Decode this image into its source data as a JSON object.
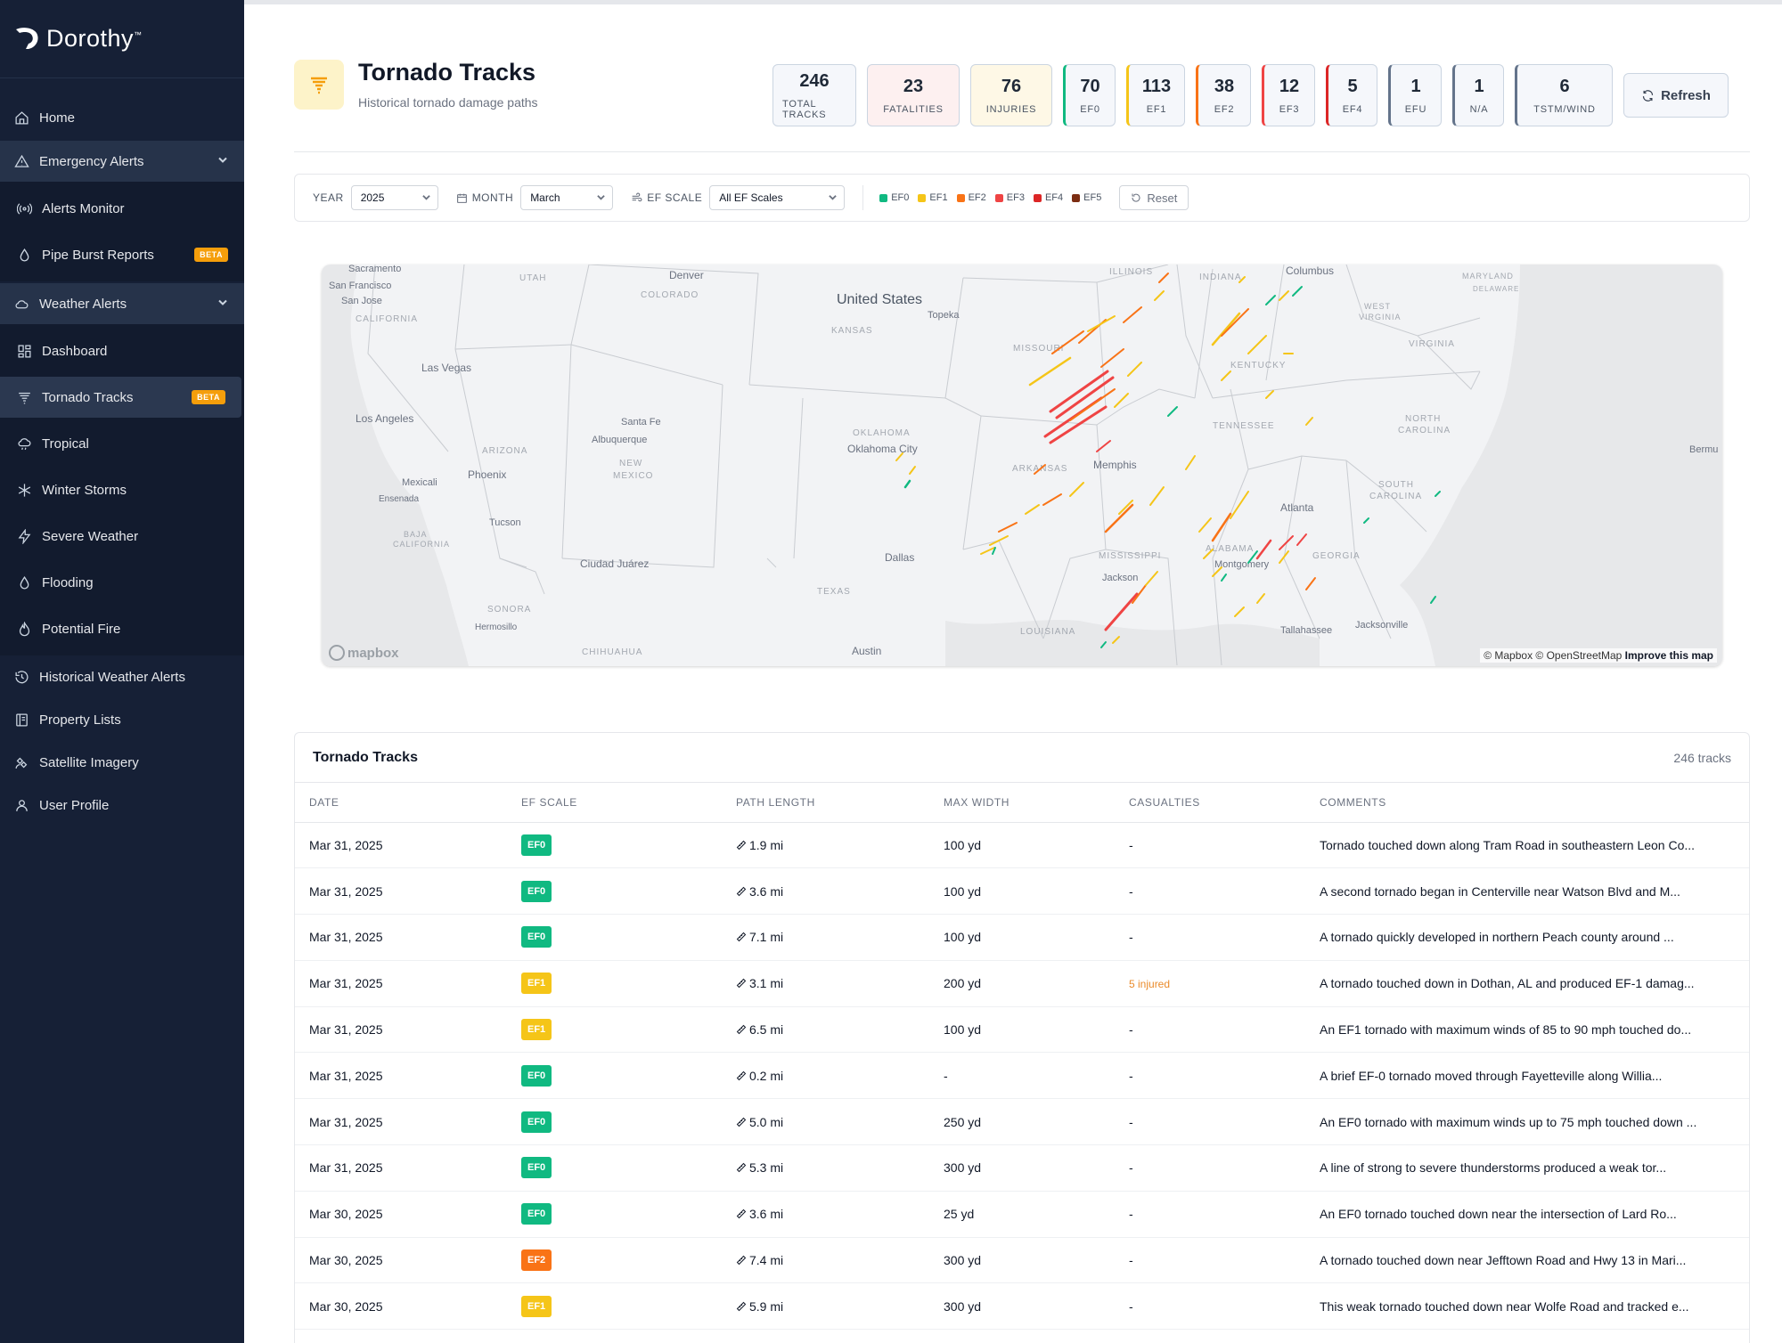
{
  "brand": {
    "name": "Dorothy",
    "tm": "™"
  },
  "sidebar": {
    "home": "Home",
    "emergency_alerts": "Emergency Alerts",
    "alerts_monitor": "Alerts Monitor",
    "pipe_burst": "Pipe Burst Reports",
    "weather_alerts": "Weather Alerts",
    "dashboard": "Dashboard",
    "tornado_tracks": "Tornado Tracks",
    "tropical": "Tropical",
    "winter_storms": "Winter Storms",
    "severe_weather": "Severe Weather",
    "flooding": "Flooding",
    "potential_fire": "Potential Fire",
    "historical": "Historical Weather Alerts",
    "property_lists": "Property Lists",
    "satellite": "Satellite Imagery",
    "user_profile": "User Profile",
    "beta": "BETA"
  },
  "header": {
    "title": "Tornado Tracks",
    "subtitle": "Historical tornado damage paths"
  },
  "stats": [
    {
      "value": "246",
      "label": "TOTAL TRACKS",
      "bg": "#f5f7fb",
      "accent": ""
    },
    {
      "value": "23",
      "label": "FATALITIES",
      "bg": "#fdf0f0",
      "accent": ""
    },
    {
      "value": "76",
      "label": "INJURIES",
      "bg": "#fef8e6",
      "accent": ""
    },
    {
      "value": "70",
      "label": "EF0",
      "bg": "#f5f7fb",
      "accent": "#10b981"
    },
    {
      "value": "113",
      "label": "EF1",
      "bg": "#f5f7fb",
      "accent": "#f5c518"
    },
    {
      "value": "38",
      "label": "EF2",
      "bg": "#f5f7fb",
      "accent": "#f97316"
    },
    {
      "value": "12",
      "label": "EF3",
      "bg": "#f5f7fb",
      "accent": "#ef4444"
    },
    {
      "value": "5",
      "label": "EF4",
      "bg": "#f5f7fb",
      "accent": "#dc2626"
    },
    {
      "value": "1",
      "label": "EFU",
      "bg": "#f5f7fb",
      "accent": "#64748b"
    },
    {
      "value": "1",
      "label": "N/A",
      "bg": "#f5f7fb",
      "accent": "#64748b"
    },
    {
      "value": "6",
      "label": "TSTM/WIND",
      "bg": "#f5f7fb",
      "accent": "#64748b"
    }
  ],
  "refresh_label": "Refresh",
  "filters": {
    "year_label": "YEAR",
    "year_value": "2025",
    "month_label": "MONTH",
    "month_value": "March",
    "ef_label": "EF SCALE",
    "ef_value": "All EF Scales",
    "reset_label": "Reset",
    "legend": [
      {
        "label": "EF0",
        "color": "#10b981"
      },
      {
        "label": "EF1",
        "color": "#f5c518"
      },
      {
        "label": "EF2",
        "color": "#f97316"
      },
      {
        "label": "EF3",
        "color": "#ef4444"
      },
      {
        "label": "EF4",
        "color": "#dc2626"
      },
      {
        "label": "EF5",
        "color": "#7c2d12"
      }
    ]
  },
  "map": {
    "attribution": "© Mapbox © OpenStreetMap",
    "improve": "Improve this map",
    "logo": "mapbox",
    "labels": [
      {
        "text": "Sacramento",
        "cls": "city"
      },
      {
        "text": "San Francisco",
        "cls": "city"
      },
      {
        "text": "San Jose",
        "cls": "city"
      },
      {
        "text": "CALIFORNIA",
        "cls": "state"
      },
      {
        "text": "Las Vegas",
        "cls": "city"
      },
      {
        "text": "Los Angeles",
        "cls": "city"
      },
      {
        "text": "UTAH",
        "cls": "state"
      },
      {
        "text": "Denver",
        "cls": "city"
      },
      {
        "text": "COLORADO",
        "cls": "state"
      },
      {
        "text": "United States",
        "cls": "country"
      },
      {
        "text": "KANSAS",
        "cls": "state"
      },
      {
        "text": "Topeka",
        "cls": "city"
      },
      {
        "text": "ARIZONA",
        "cls": "state"
      },
      {
        "text": "Phoenix",
        "cls": "city"
      },
      {
        "text": "Mexicali",
        "cls": "city"
      },
      {
        "text": "Ensenada",
        "cls": "city"
      },
      {
        "text": "Tucson",
        "cls": "city"
      },
      {
        "text": "BAJA",
        "cls": "state"
      },
      {
        "text": "CALIFORNIA",
        "cls": "state"
      },
      {
        "text": "Santa Fe",
        "cls": "city"
      },
      {
        "text": "Albuquerque",
        "cls": "city"
      },
      {
        "text": "NEW",
        "cls": "state"
      },
      {
        "text": "MEXICO",
        "cls": "state"
      },
      {
        "text": "Ciudad Juárez",
        "cls": "city"
      },
      {
        "text": "SONORA",
        "cls": "state"
      },
      {
        "text": "Hermosillo",
        "cls": "city"
      },
      {
        "text": "CHIHUAHUA",
        "cls": "state"
      },
      {
        "text": "OKLAHOMA",
        "cls": "state"
      },
      {
        "text": "Oklahoma City",
        "cls": "city"
      },
      {
        "text": "Dallas",
        "cls": "city"
      },
      {
        "text": "TEXAS",
        "cls": "state"
      },
      {
        "text": "Austin",
        "cls": "city"
      },
      {
        "text": "MISSOURI",
        "cls": "state"
      },
      {
        "text": "ARKANSAS",
        "cls": "state"
      },
      {
        "text": "Memphis",
        "cls": "city"
      },
      {
        "text": "MISSISSIPPI",
        "cls": "state"
      },
      {
        "text": "Jackson",
        "cls": "city"
      },
      {
        "text": "LOUISIANA",
        "cls": "state"
      },
      {
        "text": "ILLINOIS",
        "cls": "state"
      },
      {
        "text": "INDIANA",
        "cls": "state"
      },
      {
        "text": "Columbus",
        "cls": "city"
      },
      {
        "text": "KENTUCKY",
        "cls": "state"
      },
      {
        "text": "TENNESSEE",
        "cls": "state"
      },
      {
        "text": "ALABAMA",
        "cls": "state"
      },
      {
        "text": "Montgomery",
        "cls": "city"
      },
      {
        "text": "Atlanta",
        "cls": "city"
      },
      {
        "text": "GEORGIA",
        "cls": "state"
      },
      {
        "text": "Tallahassee",
        "cls": "city"
      },
      {
        "text": "Jacksonville",
        "cls": "city"
      },
      {
        "text": "SOUTH",
        "cls": "state"
      },
      {
        "text": "CAROLINA",
        "cls": "state"
      },
      {
        "text": "NORTH",
        "cls": "state"
      },
      {
        "text": "CAROLINA",
        "cls": "state"
      },
      {
        "text": "VIRGINIA",
        "cls": "state"
      },
      {
        "text": "WEST",
        "cls": "state"
      },
      {
        "text": "VIRGINIA",
        "cls": "state"
      },
      {
        "text": "MARYLAND",
        "cls": "state"
      },
      {
        "text": "DELAWARE",
        "cls": "state"
      },
      {
        "text": "Bermu",
        "cls": "city"
      }
    ]
  },
  "table": {
    "title": "Tornado Tracks",
    "count": "246 tracks",
    "columns": [
      "DATE",
      "EF SCALE",
      "PATH LENGTH",
      "MAX WIDTH",
      "CASUALTIES",
      "COMMENTS"
    ],
    "ef_colors": {
      "EF0": "#10b981",
      "EF1": "#f5c518",
      "EF2": "#f97316"
    },
    "rows": [
      {
        "date": "Mar 31, 2025",
        "ef": "EF0",
        "path": "1.9 mi",
        "width": "100 yd",
        "casualties": "-",
        "comment": "Tornado touched down along Tram Road in southeastern Leon Co..."
      },
      {
        "date": "Mar 31, 2025",
        "ef": "EF0",
        "path": "3.6 mi",
        "width": "100 yd",
        "casualties": "-",
        "comment": "A second tornado began in Centerville near Watson Blvd and M..."
      },
      {
        "date": "Mar 31, 2025",
        "ef": "EF0",
        "path": "7.1 mi",
        "width": "100 yd",
        "casualties": "-",
        "comment": "A tornado quickly developed in northern Peach county around ..."
      },
      {
        "date": "Mar 31, 2025",
        "ef": "EF1",
        "path": "3.1 mi",
        "width": "200 yd",
        "casualties": "5 injured",
        "comment": "A tornado touched down in Dothan, AL and produced EF-1 damag..."
      },
      {
        "date": "Mar 31, 2025",
        "ef": "EF1",
        "path": "6.5 mi",
        "width": "100 yd",
        "casualties": "-",
        "comment": "An EF1 tornado with maximum winds of 85 to 90 mph touched do..."
      },
      {
        "date": "Mar 31, 2025",
        "ef": "EF0",
        "path": "0.2 mi",
        "width": "-",
        "casualties": "-",
        "comment": "A brief EF-0 tornado moved through Fayetteville along Willia..."
      },
      {
        "date": "Mar 31, 2025",
        "ef": "EF0",
        "path": "5.0 mi",
        "width": "250 yd",
        "casualties": "-",
        "comment": "An EF0 tornado with maximum winds up to 75 mph touched down ..."
      },
      {
        "date": "Mar 31, 2025",
        "ef": "EF0",
        "path": "5.3 mi",
        "width": "300 yd",
        "casualties": "-",
        "comment": "A line of strong to severe thunderstorms produced a weak tor..."
      },
      {
        "date": "Mar 30, 2025",
        "ef": "EF0",
        "path": "3.6 mi",
        "width": "25 yd",
        "casualties": "-",
        "comment": "An EF0 tornado touched down near the intersection of Lard Ro..."
      },
      {
        "date": "Mar 30, 2025",
        "ef": "EF2",
        "path": "7.4 mi",
        "width": "300 yd",
        "casualties": "-",
        "comment": "A tornado touched down near Jefftown Road and Hwy 13 in Mari..."
      },
      {
        "date": "Mar 30, 2025",
        "ef": "EF1",
        "path": "5.9 mi",
        "width": "300 yd",
        "casualties": "-",
        "comment": "This weak tornado touched down near Wolfe Road and tracked e..."
      }
    ]
  }
}
